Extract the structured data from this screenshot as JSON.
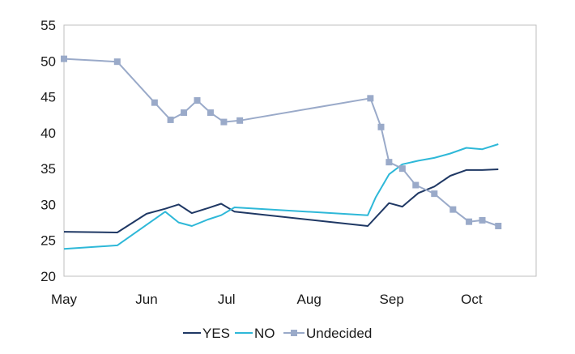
{
  "chart_data": {
    "type": "line",
    "x_ticks": [
      "May",
      "Jun",
      "Jul",
      "Aug",
      "Sep",
      "Oct"
    ],
    "ylim": [
      20,
      55
    ],
    "y_ticks": [
      20,
      25,
      30,
      35,
      40,
      45,
      50,
      55
    ],
    "grid": false,
    "legend_position": "bottom",
    "series": [
      {
        "name": "YES",
        "color": "#1f3864",
        "marker": "none",
        "points": [
          [
            "May 1",
            26.2
          ],
          [
            "May 21",
            26.1
          ],
          [
            "Jun 1",
            28.7
          ],
          [
            "Jun 8",
            29.4
          ],
          [
            "Jun 13",
            30.0
          ],
          [
            "Jun 18",
            28.8
          ],
          [
            "Jun 24",
            29.5
          ],
          [
            "Jun 29",
            30.1
          ],
          [
            "Jul 4",
            29.0
          ],
          [
            "Aug 23",
            27.0
          ],
          [
            "Aug 31",
            30.2
          ],
          [
            "Sep 5",
            29.7
          ],
          [
            "Sep 11",
            31.6
          ],
          [
            "Sep 17",
            32.5
          ],
          [
            "Sep 23",
            34.0
          ],
          [
            "Sep 29",
            34.8
          ],
          [
            "Oct 5",
            34.8
          ],
          [
            "Oct 11",
            34.9
          ]
        ]
      },
      {
        "name": "NO",
        "color": "#2eb8d8",
        "marker": "none",
        "points": [
          [
            "May 1",
            23.8
          ],
          [
            "May 21",
            24.3
          ],
          [
            "Jun 8",
            29.0
          ],
          [
            "Jun 13",
            27.5
          ],
          [
            "Jun 18",
            27.0
          ],
          [
            "Jun 24",
            27.9
          ],
          [
            "Jun 29",
            28.5
          ],
          [
            "Jul 4",
            29.6
          ],
          [
            "Aug 23",
            28.5
          ],
          [
            "Aug 26",
            31.0
          ],
          [
            "Aug 31",
            34.2
          ],
          [
            "Sep 5",
            35.6
          ],
          [
            "Sep 11",
            36.1
          ],
          [
            "Sep 17",
            36.5
          ],
          [
            "Sep 23",
            37.1
          ],
          [
            "Sep 29",
            37.9
          ],
          [
            "Oct 5",
            37.7
          ],
          [
            "Oct 11",
            38.4
          ]
        ]
      },
      {
        "name": "Undecided",
        "color": "#9aaac9",
        "marker": "square",
        "points": [
          [
            "May 1",
            50.3
          ],
          [
            "May 21",
            49.9
          ],
          [
            "Jun 4",
            44.2
          ],
          [
            "Jun 10",
            41.8
          ],
          [
            "Jun 15",
            42.8
          ],
          [
            "Jun 20",
            44.5
          ],
          [
            "Jun 25",
            42.8
          ],
          [
            "Jun 30",
            41.5
          ],
          [
            "Jul 6",
            41.7
          ],
          [
            "Aug 24",
            44.8
          ],
          [
            "Aug 28",
            40.8
          ],
          [
            "Aug 31",
            35.9
          ],
          [
            "Sep 5",
            35.0
          ],
          [
            "Sep 10",
            32.7
          ],
          [
            "Sep 17",
            31.5
          ],
          [
            "Sep 24",
            29.3
          ],
          [
            "Sep 30",
            27.6
          ],
          [
            "Oct 5",
            27.8
          ],
          [
            "Oct 11",
            27.0
          ]
        ]
      }
    ]
  }
}
